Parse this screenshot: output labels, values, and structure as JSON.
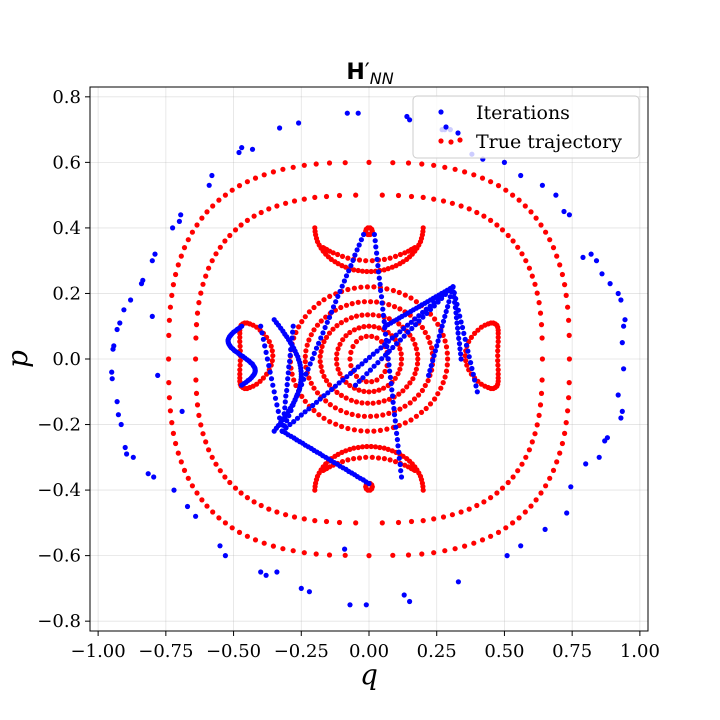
{
  "chart_data": {
    "type": "scatter",
    "title": "H′NN",
    "xlabel": "q",
    "ylabel": "p",
    "xlim": [
      -1.03,
      1.03
    ],
    "ylim": [
      -0.83,
      0.83
    ],
    "xticks": [
      -1.0,
      -0.75,
      -0.5,
      -0.25,
      0.0,
      0.25,
      0.5,
      0.75,
      1.0
    ],
    "xtick_labels": [
      "−1.00",
      "−0.75",
      "−0.50",
      "−0.25",
      "0.00",
      "0.25",
      "0.50",
      "0.75",
      "1.00"
    ],
    "yticks": [
      -0.8,
      -0.6,
      -0.4,
      -0.2,
      0.0,
      0.2,
      0.4,
      0.6,
      0.8
    ],
    "ytick_labels": [
      "−0.8",
      "−0.6",
      "−0.4",
      "−0.2",
      "0.0",
      "0.2",
      "0.4",
      "0.6",
      "0.8"
    ],
    "grid": true,
    "legend_position": "top-right",
    "series": [
      {
        "name": "Iterations",
        "color": "#0000ff",
        "points": [
          [
            -0.95,
            -0.04
          ],
          [
            -0.948,
            -0.06
          ],
          [
            -0.945,
            0.03
          ],
          [
            -0.942,
            0.04
          ],
          [
            -0.93,
            0.09
          ],
          [
            -0.93,
            -0.13
          ],
          [
            -0.925,
            -0.17
          ],
          [
            -0.92,
            0.11
          ],
          [
            -0.915,
            -0.2
          ],
          [
            -0.905,
            0.15
          ],
          [
            -0.9,
            -0.27
          ],
          [
            -0.895,
            -0.29
          ],
          [
            -0.88,
            0.18
          ],
          [
            -0.87,
            -0.3
          ],
          [
            -0.84,
            0.23
          ],
          [
            -0.835,
            0.24
          ],
          [
            -0.815,
            -0.35
          ],
          [
            -0.8,
            0.3
          ],
          [
            -0.8,
            0.13
          ],
          [
            -0.795,
            -0.36
          ],
          [
            -0.79,
            0.32
          ],
          [
            -0.78,
            -0.05
          ],
          [
            -0.725,
            0.4
          ],
          [
            -0.72,
            -0.4
          ],
          [
            -0.7,
            0.42
          ],
          [
            -0.695,
            0.44
          ],
          [
            -0.69,
            -0.16
          ],
          [
            -0.67,
            -0.45
          ],
          [
            -0.64,
            -0.48
          ],
          [
            -0.59,
            0.53
          ],
          [
            -0.58,
            0.56
          ],
          [
            -0.55,
            -0.57
          ],
          [
            -0.53,
            -0.6
          ],
          [
            -0.48,
            0.63
          ],
          [
            -0.47,
            0.645
          ],
          [
            -0.43,
            0.64
          ],
          [
            -0.4,
            -0.65
          ],
          [
            -0.38,
            -0.66
          ],
          [
            -0.34,
            -0.65
          ],
          [
            -0.33,
            0.705
          ],
          [
            -0.26,
            0.72
          ],
          [
            -0.25,
            -0.7
          ],
          [
            -0.22,
            -0.71
          ],
          [
            -0.09,
            -0.58
          ],
          [
            -0.08,
            0.75
          ],
          [
            -0.07,
            -0.75
          ],
          [
            -0.04,
            0.75
          ],
          [
            -0.01,
            -0.75
          ],
          [
            0.13,
            -0.72
          ],
          [
            0.14,
            0.74
          ],
          [
            0.15,
            0.73
          ],
          [
            0.15,
            -0.74
          ],
          [
            0.27,
            0.7
          ],
          [
            0.28,
            0.7
          ],
          [
            0.3,
            0.7
          ],
          [
            0.33,
            -0.68
          ],
          [
            0.38,
            0.625
          ],
          [
            0.42,
            0.61
          ],
          [
            0.5,
            0.6
          ],
          [
            0.51,
            -0.6
          ],
          [
            0.56,
            0.56
          ],
          [
            0.56,
            -0.57
          ],
          [
            0.64,
            0.53
          ],
          [
            0.65,
            -0.52
          ],
          [
            0.69,
            0.5
          ],
          [
            0.72,
            0.45
          ],
          [
            0.73,
            -0.47
          ],
          [
            0.74,
            0.44
          ],
          [
            0.745,
            -0.39
          ],
          [
            0.79,
            0.31
          ],
          [
            0.8,
            -0.32
          ],
          [
            0.82,
            0.32
          ],
          [
            0.84,
            0.3
          ],
          [
            0.85,
            -0.3
          ],
          [
            0.86,
            0.26
          ],
          [
            0.87,
            -0.25
          ],
          [
            0.88,
            -0.24
          ],
          [
            0.89,
            0.23
          ],
          [
            0.92,
            0.2
          ],
          [
            0.93,
            0.18
          ],
          [
            0.93,
            -0.18
          ],
          [
            0.935,
            -0.16
          ],
          [
            0.94,
            0.1
          ],
          [
            0.945,
            0.12
          ],
          [
            0.92,
            -0.11
          ],
          [
            0.94,
            -0.03
          ],
          [
            0.935,
            0.05
          ]
        ]
      },
      {
        "name": "True trajectory",
        "color": "#ff0000",
        "points": []
      }
    ]
  }
}
